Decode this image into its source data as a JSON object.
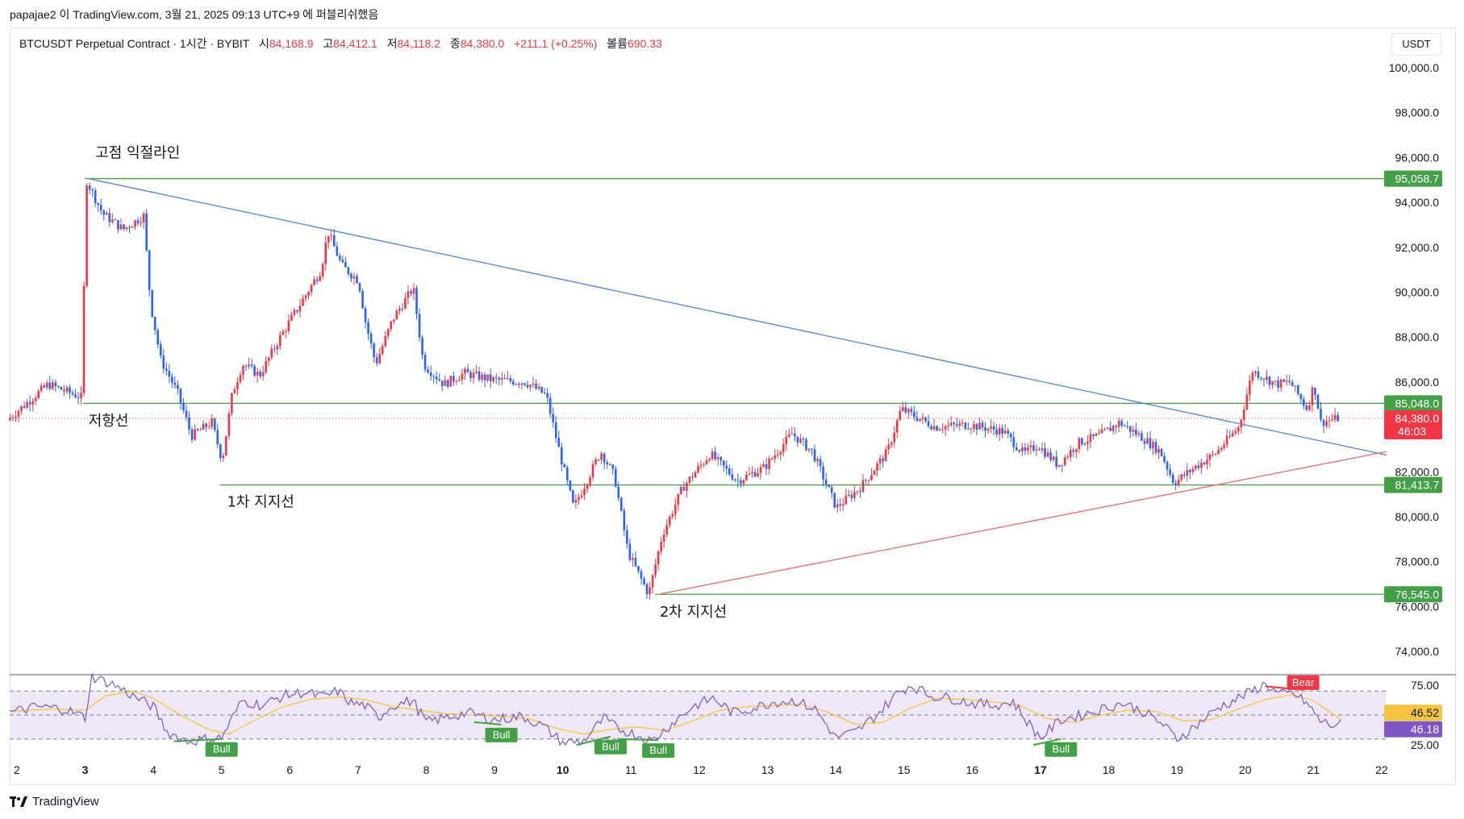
{
  "header": {
    "published_line": "papajae2 이 TradingView.com, 3월 21, 2025 09:13 UTC+9 에 퍼블리쉬했음"
  },
  "legend": {
    "symbol": "BTCUSDT Perpetual Contract · 1시간 · BYBIT",
    "open_label": "시",
    "open": "84,168.9",
    "high_label": "고",
    "high": "84,412.1",
    "low_label": "저",
    "low": "84,118.2",
    "close_label": "종",
    "close": "84,380.0",
    "change": "+211.1 (+0.25%)",
    "volume_label": "볼륨",
    "volume": "690.33"
  },
  "currency": "USDT",
  "footer": {
    "brand": "TradingView"
  },
  "colors": {
    "up": "#f23645",
    "down": "#2962ff",
    "support_line": "#43a047",
    "trend_down": "#5b8bd6",
    "trend_up": "#e57373",
    "rsi": "#7e57c2",
    "rsi_ma": "#f5c542",
    "rsi_band": "#ede7f6"
  },
  "chart_data": [
    {
      "type": "candlestick",
      "ylim": [
        73000,
        100500
      ],
      "y_ticks": [
        "100,000.0",
        "98,000.0",
        "96,000.0",
        "94,000.0",
        "92,000.0",
        "90,000.0",
        "88,000.0",
        "86,000.0",
        "82,000.0",
        "80,000.0",
        "78,000.0",
        "76,000.0",
        "74,000.0"
      ],
      "y_tick_values": [
        100000,
        98000,
        96000,
        94000,
        92000,
        90000,
        88000,
        86000,
        82000,
        80000,
        78000,
        76000,
        74000
      ],
      "x_ticks": [
        "2",
        "3",
        "4",
        "5",
        "6",
        "7",
        "8",
        "9",
        "10",
        "11",
        "12",
        "13",
        "14",
        "15",
        "16",
        "17",
        "18",
        "19",
        "20",
        "21",
        "22"
      ],
      "x_bold": [
        "3",
        "10",
        "17"
      ],
      "xlim": [
        2,
        22
      ],
      "price_path": [
        [
          1.9,
          84300
        ],
        [
          2.5,
          85900
        ],
        [
          3.0,
          85300
        ],
        [
          3.05,
          95058
        ],
        [
          3.3,
          93500
        ],
        [
          3.6,
          92800
        ],
        [
          3.9,
          93400
        ],
        [
          4.0,
          89500
        ],
        [
          4.15,
          87000
        ],
        [
          4.4,
          85500
        ],
        [
          4.6,
          83600
        ],
        [
          4.9,
          84200
        ],
        [
          5.05,
          82500
        ],
        [
          5.2,
          85500
        ],
        [
          5.35,
          86800
        ],
        [
          5.6,
          86300
        ],
        [
          5.9,
          88000
        ],
        [
          6.2,
          89500
        ],
        [
          6.5,
          91000
        ],
        [
          6.6,
          92700
        ],
        [
          6.8,
          91200
        ],
        [
          7.05,
          90500
        ],
        [
          7.15,
          88700
        ],
        [
          7.3,
          86800
        ],
        [
          7.55,
          88800
        ],
        [
          7.85,
          90200
        ],
        [
          8.0,
          86800
        ],
        [
          8.3,
          85900
        ],
        [
          8.6,
          86400
        ],
        [
          9.0,
          86100
        ],
        [
          9.5,
          86000
        ],
        [
          9.8,
          85400
        ],
        [
          10.0,
          82800
        ],
        [
          10.2,
          80400
        ],
        [
          10.6,
          82900
        ],
        [
          10.8,
          81800
        ],
        [
          11.0,
          78400
        ],
        [
          11.3,
          76545
        ],
        [
          11.5,
          79200
        ],
        [
          11.8,
          81300
        ],
        [
          12.2,
          82800
        ],
        [
          12.6,
          81600
        ],
        [
          13.0,
          82200
        ],
        [
          13.4,
          83700
        ],
        [
          13.7,
          82900
        ],
        [
          14.05,
          80400
        ],
        [
          14.4,
          81300
        ],
        [
          14.8,
          82900
        ],
        [
          15.0,
          84800
        ],
        [
          15.5,
          84000
        ],
        [
          16.0,
          84100
        ],
        [
          16.5,
          83800
        ],
        [
          16.8,
          82800
        ],
        [
          17.0,
          83200
        ],
        [
          17.3,
          82300
        ],
        [
          17.6,
          83300
        ],
        [
          17.9,
          83600
        ],
        [
          18.2,
          84200
        ],
        [
          18.5,
          83600
        ],
        [
          18.8,
          82900
        ],
        [
          19.0,
          81500
        ],
        [
          19.3,
          82200
        ],
        [
          19.6,
          82800
        ],
        [
          19.95,
          84000
        ],
        [
          20.15,
          86500
        ],
        [
          20.5,
          85900
        ],
        [
          20.7,
          86000
        ],
        [
          20.95,
          84800
        ],
        [
          21.05,
          85900
        ],
        [
          21.15,
          84200
        ],
        [
          21.4,
          84380
        ]
      ],
      "horizontal_levels": [
        {
          "value": 95058.7,
          "label": "95,058.7"
        },
        {
          "value": 85048.0,
          "label": "85,048.0"
        },
        {
          "value": 81413.7,
          "label": "81,413.7"
        },
        {
          "value": 76545.0,
          "label": "76,545.0"
        }
      ],
      "last_price": {
        "value": 84380.0,
        "label": "84,380.0",
        "countdown": "46:03"
      },
      "trendlines": [
        {
          "kind": "down",
          "from": [
            3.05,
            95058
          ],
          "to": [
            22.07,
            82750
          ]
        },
        {
          "kind": "up",
          "from": [
            11.4,
            76545
          ],
          "to": [
            22.07,
            82900
          ]
        }
      ],
      "annotations": [
        {
          "text": "고점 익절라인",
          "at": [
            3.15,
            96000
          ]
        },
        {
          "text": "저항선",
          "at": [
            3.05,
            84050
          ]
        },
        {
          "text": "1차 지지선",
          "at": [
            5.08,
            80450
          ]
        },
        {
          "text": "2차 지지선",
          "at": [
            11.42,
            75550
          ]
        }
      ]
    },
    {
      "type": "line",
      "name": "RSI",
      "ylim": [
        17,
        83
      ],
      "y_ticks": [
        "75.00",
        "25.00"
      ],
      "y_tick_values": [
        75,
        25
      ],
      "band": [
        70,
        30
      ],
      "midline": 50,
      "rsi_value": "46.18",
      "ma_value": "46.52",
      "rsi_path": [
        [
          1.9,
          52
        ],
        [
          2.3,
          57
        ],
        [
          2.7,
          55
        ],
        [
          3.0,
          48
        ],
        [
          3.1,
          82
        ],
        [
          3.4,
          76
        ],
        [
          3.7,
          66
        ],
        [
          4.0,
          57
        ],
        [
          4.2,
          36
        ],
        [
          4.5,
          28
        ],
        [
          4.8,
          30
        ],
        [
          5.0,
          31
        ],
        [
          5.3,
          62
        ],
        [
          5.6,
          58
        ],
        [
          5.9,
          66
        ],
        [
          6.2,
          69
        ],
        [
          6.5,
          65
        ],
        [
          6.7,
          70
        ],
        [
          6.9,
          60
        ],
        [
          7.1,
          58
        ],
        [
          7.3,
          48
        ],
        [
          7.5,
          58
        ],
        [
          7.8,
          62
        ],
        [
          8.0,
          44
        ],
        [
          8.3,
          48
        ],
        [
          8.6,
          52
        ],
        [
          9.0,
          46
        ],
        [
          9.4,
          49
        ],
        [
          9.7,
          41
        ],
        [
          10.0,
          27
        ],
        [
          10.3,
          28
        ],
        [
          10.6,
          47
        ],
        [
          10.8,
          39
        ],
        [
          11.1,
          33
        ],
        [
          11.3,
          28
        ],
        [
          11.6,
          43
        ],
        [
          11.9,
          57
        ],
        [
          12.2,
          64
        ],
        [
          12.5,
          52
        ],
        [
          12.8,
          56
        ],
        [
          13.1,
          61
        ],
        [
          13.4,
          62
        ],
        [
          13.7,
          55
        ],
        [
          14.0,
          31
        ],
        [
          14.3,
          36
        ],
        [
          14.6,
          50
        ],
        [
          14.9,
          68
        ],
        [
          15.1,
          75
        ],
        [
          15.4,
          66
        ],
        [
          15.7,
          64
        ],
        [
          16.0,
          60
        ],
        [
          16.3,
          58
        ],
        [
          16.6,
          61
        ],
        [
          16.8,
          45
        ],
        [
          17.0,
          31
        ],
        [
          17.3,
          46
        ],
        [
          17.6,
          50
        ],
        [
          17.9,
          55
        ],
        [
          18.2,
          60
        ],
        [
          18.5,
          53
        ],
        [
          18.8,
          42
        ],
        [
          19.0,
          30
        ],
        [
          19.3,
          42
        ],
        [
          19.6,
          56
        ],
        [
          19.9,
          64
        ],
        [
          20.1,
          70
        ],
        [
          20.3,
          76
        ],
        [
          20.5,
          67
        ],
        [
          20.7,
          68
        ],
        [
          20.9,
          60
        ],
        [
          21.1,
          45
        ],
        [
          21.3,
          41
        ],
        [
          21.4,
          46
        ]
      ],
      "ma_path": [
        [
          1.9,
          53
        ],
        [
          2.5,
          55
        ],
        [
          3.0,
          54
        ],
        [
          3.3,
          66
        ],
        [
          3.7,
          70
        ],
        [
          4.0,
          64
        ],
        [
          4.4,
          50
        ],
        [
          4.8,
          38
        ],
        [
          5.1,
          34
        ],
        [
          5.5,
          46
        ],
        [
          5.9,
          57
        ],
        [
          6.3,
          63
        ],
        [
          6.7,
          65
        ],
        [
          7.1,
          63
        ],
        [
          7.5,
          57
        ],
        [
          7.9,
          54
        ],
        [
          8.3,
          51
        ],
        [
          8.7,
          50
        ],
        [
          9.1,
          49
        ],
        [
          9.5,
          47
        ],
        [
          9.9,
          39
        ],
        [
          10.3,
          34
        ],
        [
          10.7,
          38
        ],
        [
          11.1,
          40
        ],
        [
          11.5,
          37
        ],
        [
          11.9,
          45
        ],
        [
          12.3,
          54
        ],
        [
          12.7,
          57
        ],
        [
          13.1,
          58
        ],
        [
          13.5,
          59
        ],
        [
          13.9,
          52
        ],
        [
          14.3,
          42
        ],
        [
          14.7,
          44
        ],
        [
          15.1,
          56
        ],
        [
          15.5,
          64
        ],
        [
          15.9,
          63
        ],
        [
          16.3,
          61
        ],
        [
          16.7,
          58
        ],
        [
          17.1,
          47
        ],
        [
          17.5,
          44
        ],
        [
          17.9,
          50
        ],
        [
          18.3,
          54
        ],
        [
          18.7,
          53
        ],
        [
          19.1,
          45
        ],
        [
          19.5,
          46
        ],
        [
          19.9,
          55
        ],
        [
          20.3,
          63
        ],
        [
          20.7,
          67
        ],
        [
          21.0,
          62
        ],
        [
          21.4,
          46.5
        ]
      ],
      "divergence_labels": [
        {
          "text": "Bull",
          "at": [
            5.0,
            30
          ],
          "kind": "bull",
          "from": [
            4.3,
            28
          ]
        },
        {
          "text": "Bull",
          "at": [
            9.1,
            42
          ],
          "kind": "bull",
          "from": [
            8.7,
            44
          ]
        },
        {
          "text": "Bull",
          "at": [
            10.7,
            32
          ],
          "kind": "bull",
          "from": [
            10.2,
            25
          ]
        },
        {
          "text": "Bull",
          "at": [
            11.4,
            29
          ],
          "kind": "bull",
          "from": [
            10.8,
            30
          ]
        },
        {
          "text": "Bull",
          "at": [
            17.3,
            30
          ],
          "kind": "bull",
          "from": [
            16.9,
            25
          ]
        },
        {
          "text": "Bear",
          "at": [
            20.85,
            71
          ],
          "kind": "bear",
          "from": [
            20.3,
            74
          ]
        }
      ]
    }
  ]
}
